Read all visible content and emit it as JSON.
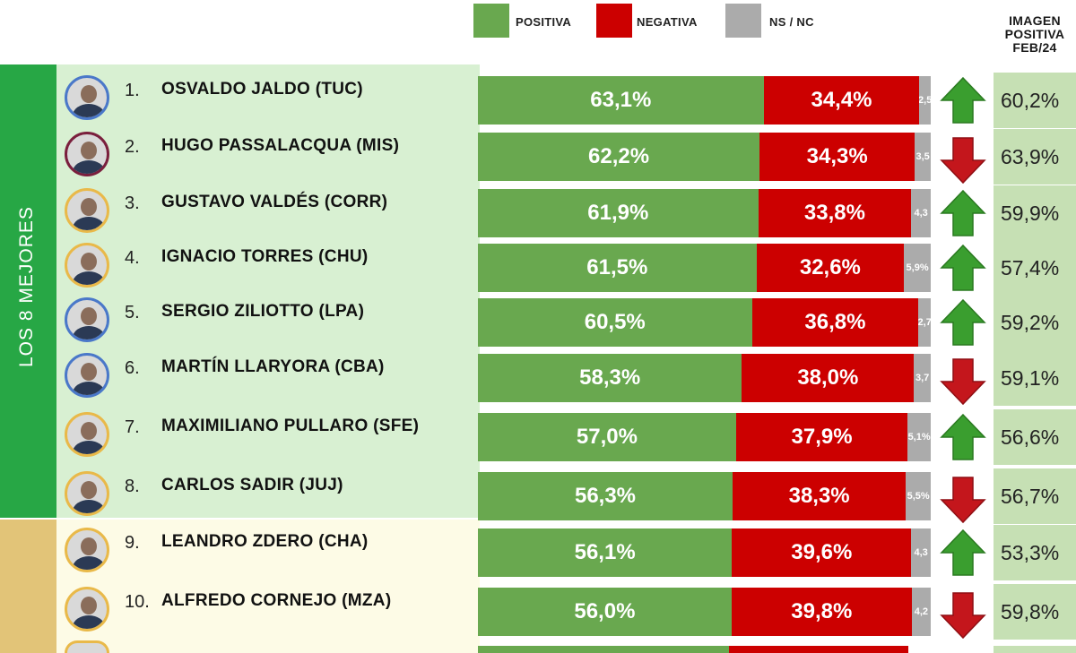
{
  "legend": {
    "positiva": "POSITIVA",
    "negativa": "NEGATIVA",
    "nsnc": "NS / NC"
  },
  "prev_header": {
    "line1": "IMAGEN",
    "line2": "POSITIVA",
    "line3": "FEB/24"
  },
  "groups": {
    "best": "LOS 8 MEJORES"
  },
  "colors": {
    "positiva": "#69a84f",
    "negativa": "#cc0000",
    "nsnc": "#ababab",
    "best_band": "#27a745",
    "best_row_bg": "#d8f0d2",
    "mid_band": "#e2c478",
    "mid_row_bg": "#fdfbe6",
    "prev_cell": "#c6e0b4",
    "arrow_up": "#3a9e2f",
    "arrow_down": "#c4161c"
  },
  "chart_data": {
    "type": "bar",
    "orientation": "horizontal-stacked",
    "title": "",
    "xlabel": "",
    "ylabel": "",
    "xlim": [
      0,
      100
    ],
    "categories": [
      "OSVALDO JALDO (TUC)",
      "HUGO PASSALACQUA (MIS)",
      "GUSTAVO VALDÉS (CORR)",
      "IGNACIO TORRES (CHU)",
      "SERGIO ZILIOTTO (LPA)",
      "MARTÍN LLARYORA (CBA)",
      "MAXIMILIANO PULLARO (SFE)",
      "CARLOS SADIR (JUJ)",
      "LEANDRO ZDERO (CHA)",
      "ALFREDO CORNEJO (MZA)"
    ],
    "series": [
      {
        "name": "POSITIVA",
        "values": [
          63.1,
          62.2,
          61.9,
          61.5,
          60.5,
          58.3,
          57.0,
          56.3,
          56.1,
          56.0
        ]
      },
      {
        "name": "NEGATIVA",
        "values": [
          34.4,
          34.3,
          33.8,
          32.6,
          36.8,
          38.0,
          37.9,
          38.3,
          39.6,
          39.8
        ]
      },
      {
        "name": "NS / NC",
        "values": [
          2.5,
          3.5,
          4.3,
          5.9,
          2.7,
          3.7,
          5.1,
          5.5,
          4.3,
          4.2
        ]
      }
    ],
    "rows": [
      {
        "rank": "1.",
        "name": "OSVALDO JALDO (TUC)",
        "group": "best",
        "positive": 63.1,
        "negative": 34.4,
        "nsnc": 2.5,
        "pos_label": "63,1%",
        "neg_label": "34,4%",
        "ns_label": "2,5",
        "trend": "up",
        "prev": 60.2,
        "prev_label": "60,2%"
      },
      {
        "rank": "2.",
        "name": "HUGO PASSALACQUA (MIS)",
        "group": "best",
        "positive": 62.2,
        "negative": 34.3,
        "nsnc": 3.5,
        "pos_label": "62,2%",
        "neg_label": "34,3%",
        "ns_label": "3,5",
        "trend": "down",
        "prev": 63.9,
        "prev_label": "63,9%"
      },
      {
        "rank": "3.",
        "name": "GUSTAVO VALDÉS (CORR)",
        "group": "best",
        "positive": 61.9,
        "negative": 33.8,
        "nsnc": 4.3,
        "pos_label": "61,9%",
        "neg_label": "33,8%",
        "ns_label": "4,3",
        "trend": "up",
        "prev": 59.9,
        "prev_label": "59,9%"
      },
      {
        "rank": "4.",
        "name": "IGNACIO TORRES (CHU)",
        "group": "best",
        "positive": 61.5,
        "negative": 32.6,
        "nsnc": 5.9,
        "pos_label": "61,5%",
        "neg_label": "32,6%",
        "ns_label": "5,9%",
        "trend": "up",
        "prev": 57.4,
        "prev_label": "57,4%"
      },
      {
        "rank": "5.",
        "name": "SERGIO ZILIOTTO (LPA)",
        "group": "best",
        "positive": 60.5,
        "negative": 36.8,
        "nsnc": 2.7,
        "pos_label": "60,5%",
        "neg_label": "36,8%",
        "ns_label": "2,7",
        "trend": "up",
        "prev": 59.2,
        "prev_label": "59,2%"
      },
      {
        "rank": "6.",
        "name": "MARTÍN LLARYORA (CBA)",
        "group": "best",
        "positive": 58.3,
        "negative": 38.0,
        "nsnc": 3.7,
        "pos_label": "58,3%",
        "neg_label": "38,0%",
        "ns_label": "3,7",
        "trend": "down",
        "prev": 59.1,
        "prev_label": "59,1%"
      },
      {
        "rank": "7.",
        "name": "MAXIMILIANO PULLARO (SFE)",
        "group": "best",
        "positive": 57.0,
        "negative": 37.9,
        "nsnc": 5.1,
        "pos_label": "57,0%",
        "neg_label": "37,9%",
        "ns_label": "5,1%",
        "trend": "up",
        "prev": 56.6,
        "prev_label": "56,6%"
      },
      {
        "rank": "8.",
        "name": "CARLOS SADIR (JUJ)",
        "group": "best",
        "positive": 56.3,
        "negative": 38.3,
        "nsnc": 5.5,
        "pos_label": "56,3%",
        "neg_label": "38,3%",
        "ns_label": "5,5%",
        "trend": "down",
        "prev": 56.7,
        "prev_label": "56,7%"
      },
      {
        "rank": "9.",
        "name": "LEANDRO ZDERO (CHA)",
        "group": "mid",
        "positive": 56.1,
        "negative": 39.6,
        "nsnc": 4.3,
        "pos_label": "56,1%",
        "neg_label": "39,6%",
        "ns_label": "4,3",
        "trend": "up",
        "prev": 53.3,
        "prev_label": "53,3%"
      },
      {
        "rank": "10.",
        "name": "ALFREDO CORNEJO (MZA)",
        "group": "mid",
        "positive": 56.0,
        "negative": 39.8,
        "nsnc": 4.2,
        "pos_label": "56,0%",
        "neg_label": "39,8%",
        "ns_label": "4,2",
        "trend": "down",
        "prev": 59.8,
        "prev_label": "59,8%"
      }
    ]
  }
}
